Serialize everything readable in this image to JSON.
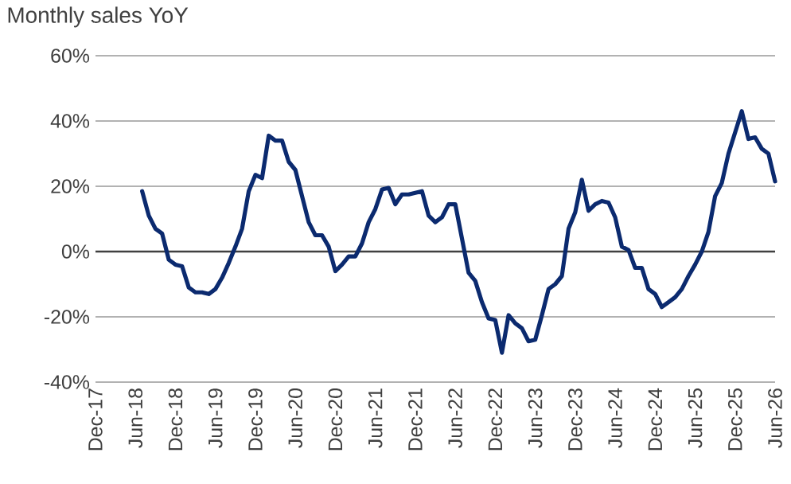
{
  "chart_data": {
    "type": "line",
    "title": "Monthly sales YoY",
    "x": [
      "2018-07",
      "2018-08",
      "2018-09",
      "2018-10",
      "2018-11",
      "2018-12",
      "2019-01",
      "2019-02",
      "2019-03",
      "2019-04",
      "2019-05",
      "2019-06",
      "2019-07",
      "2019-08",
      "2019-09",
      "2019-10",
      "2019-11",
      "2019-12",
      "2020-01",
      "2020-02",
      "2020-03",
      "2020-04",
      "2020-05",
      "2020-06",
      "2020-07",
      "2020-08",
      "2020-09",
      "2020-10",
      "2020-11",
      "2020-12",
      "2021-01",
      "2021-02",
      "2021-03",
      "2021-04",
      "2021-05",
      "2021-06",
      "2021-07",
      "2021-08",
      "2021-09",
      "2021-10",
      "2021-11",
      "2021-12",
      "2022-01",
      "2022-02",
      "2022-03",
      "2022-04",
      "2022-05",
      "2022-06",
      "2022-07",
      "2022-08",
      "2022-09",
      "2022-10",
      "2022-11",
      "2022-12",
      "2023-01",
      "2023-02",
      "2023-03",
      "2023-04",
      "2023-05",
      "2023-06",
      "2023-07",
      "2023-08",
      "2023-09",
      "2023-10",
      "2023-11",
      "2023-12",
      "2024-01",
      "2024-02",
      "2024-03",
      "2024-04",
      "2024-05",
      "2024-06",
      "2024-07",
      "2024-08",
      "2024-09",
      "2024-10",
      "2024-11",
      "2024-12",
      "2025-01",
      "2025-02",
      "2025-03",
      "2025-04",
      "2025-05",
      "2025-06",
      "2025-07",
      "2025-08",
      "2025-09",
      "2025-10",
      "2025-11",
      "2025-12",
      "2026-01",
      "2026-02",
      "2026-03",
      "2026-04",
      "2026-05",
      "2026-06"
    ],
    "series": [
      {
        "color": "#0b2a6f",
        "values": [
          18.5,
          11,
          7,
          5.5,
          -2.5,
          -4,
          -4.5,
          -11,
          -12.5,
          -12.5,
          -13,
          -11.5,
          -8,
          -3.5,
          1.5,
          7,
          18.5,
          23.5,
          22.5,
          35.5,
          34,
          34,
          27.5,
          25,
          17,
          9,
          5,
          5,
          1.5,
          -6,
          -4,
          -1.5,
          -1.5,
          2.5,
          9,
          13,
          19,
          19.5,
          14.5,
          17.5,
          17.5,
          18,
          18.5,
          11,
          9,
          10.5,
          14.5,
          14.5,
          4,
          -6.5,
          -9,
          -15.5,
          -20.5,
          -21,
          -31,
          -19.5,
          -22,
          -23.5,
          -27.5,
          -27,
          -19.5,
          -11.5,
          -10,
          -7.5,
          7,
          12,
          22,
          12.5,
          14.5,
          15.5,
          15,
          10.5,
          1.5,
          0.5,
          -5,
          -5,
          -11.5,
          -13,
          -17,
          -15.5,
          -14,
          -11.5,
          -7.5,
          -4,
          0,
          6,
          17,
          21,
          30,
          36.5,
          43,
          34.5,
          35,
          31.5,
          30,
          21.5
        ]
      }
    ],
    "xlim": [
      "2017-12",
      "2026-06"
    ],
    "xticks": [
      {
        "value": "2017-12",
        "label": "Dec-17"
      },
      {
        "value": "2018-06",
        "label": "Jun-18"
      },
      {
        "value": "2018-12",
        "label": "Dec-18"
      },
      {
        "value": "2019-06",
        "label": "Jun-19"
      },
      {
        "value": "2019-12",
        "label": "Dec-19"
      },
      {
        "value": "2020-06",
        "label": "Jun-20"
      },
      {
        "value": "2020-12",
        "label": "Dec-20"
      },
      {
        "value": "2021-06",
        "label": "Jun-21"
      },
      {
        "value": "2021-12",
        "label": "Dec-21"
      },
      {
        "value": "2022-06",
        "label": "Jun-22"
      },
      {
        "value": "2022-12",
        "label": "Dec-22"
      },
      {
        "value": "2023-06",
        "label": "Jun-23"
      },
      {
        "value": "2023-12",
        "label": "Dec-23"
      },
      {
        "value": "2024-06",
        "label": "Jun-24"
      },
      {
        "value": "2024-12",
        "label": "Dec-24"
      },
      {
        "value": "2025-06",
        "label": "Jun-25"
      },
      {
        "value": "2025-12",
        "label": "Dec-25"
      },
      {
        "value": "2026-06",
        "label": "Jun-26"
      }
    ],
    "ylim": [
      -40,
      60
    ],
    "yticks": [
      {
        "value": -40,
        "label": "-40%"
      },
      {
        "value": -20,
        "label": "-20%"
      },
      {
        "value": 0,
        "label": "0%"
      },
      {
        "value": 20,
        "label": "20%"
      },
      {
        "value": 40,
        "label": "40%"
      },
      {
        "value": 60,
        "label": "60%"
      }
    ],
    "grid": "y",
    "legend": false,
    "marker": "none",
    "line_style": "solid"
  }
}
